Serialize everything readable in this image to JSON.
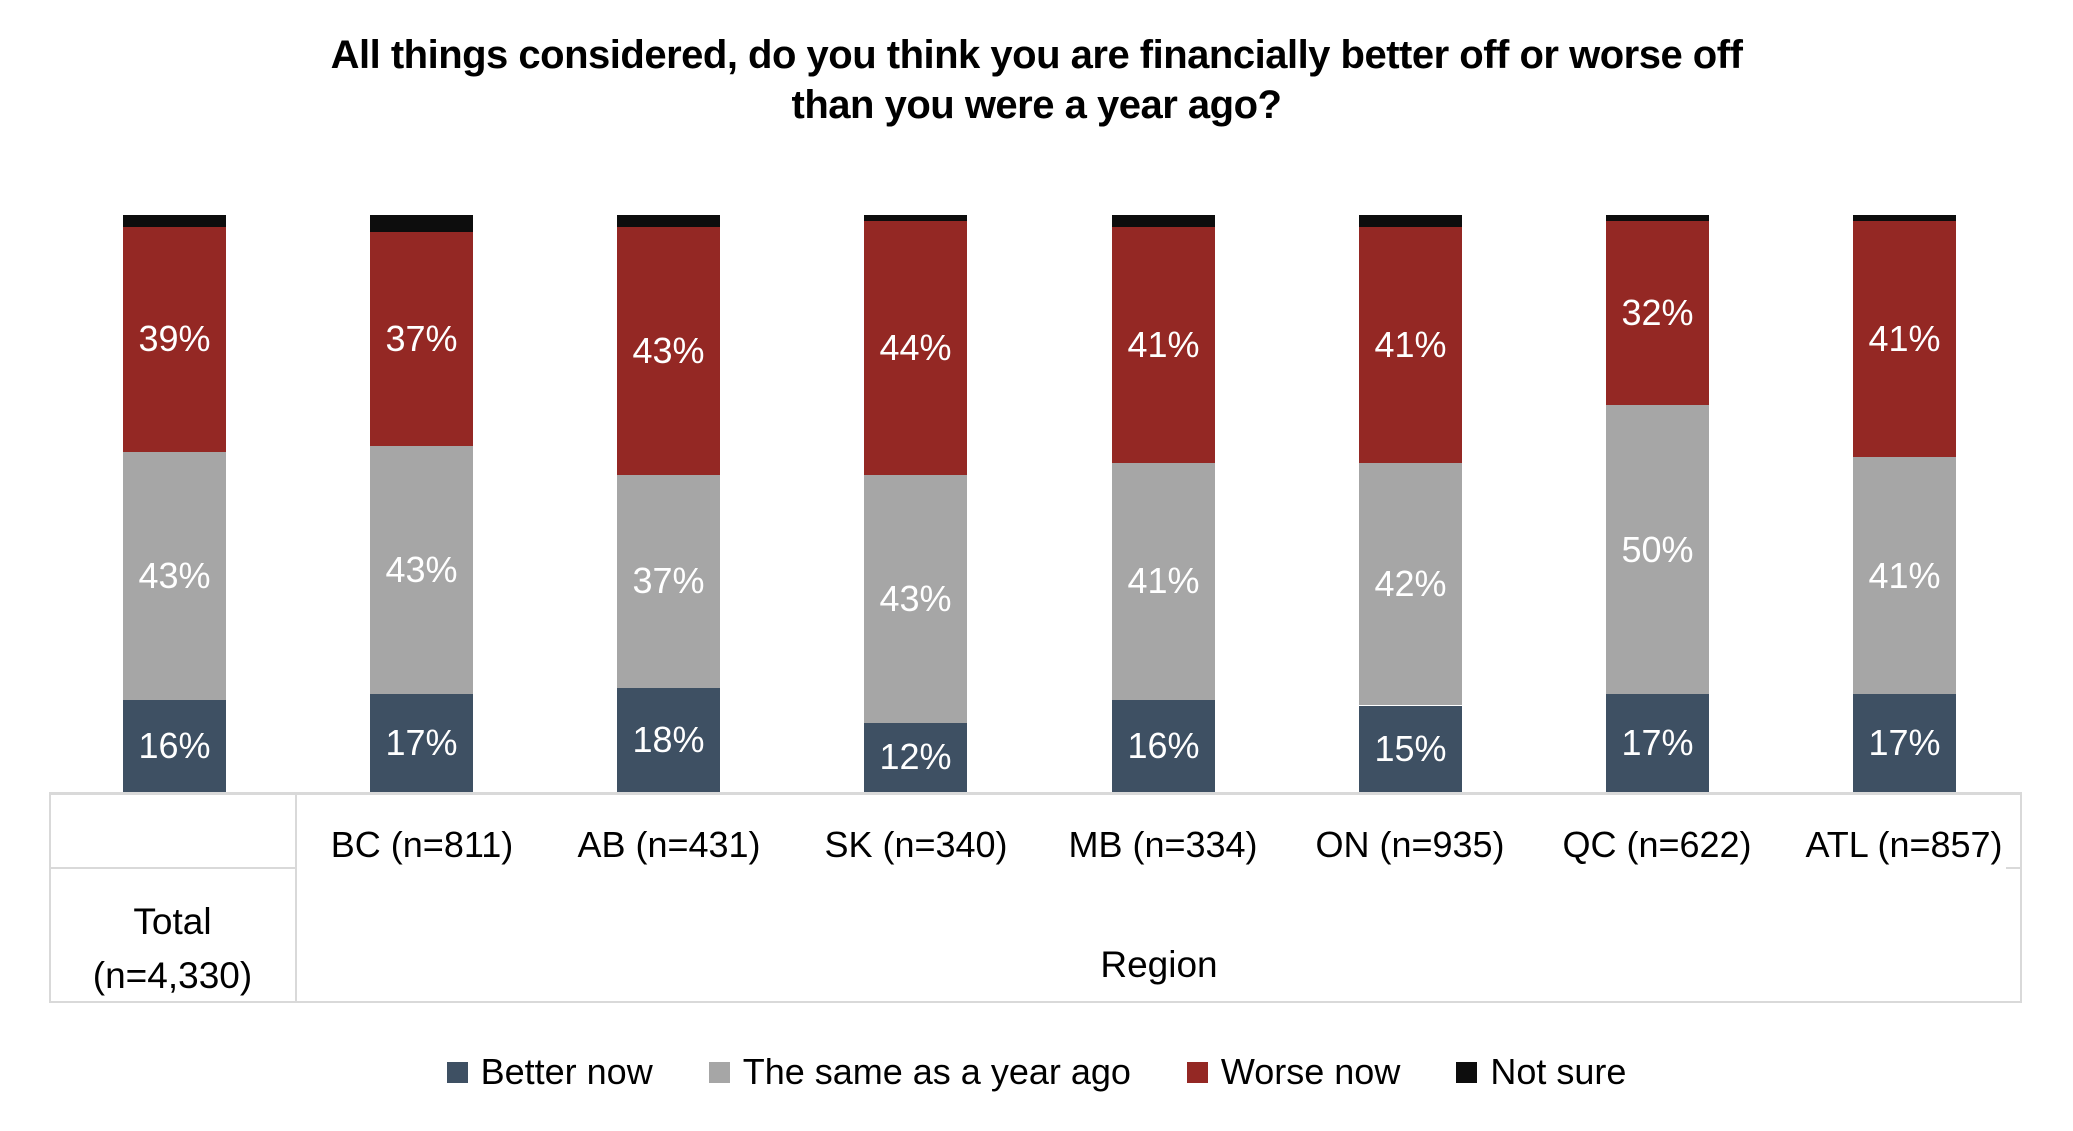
{
  "chart_data": {
    "type": "bar",
    "subtype": "100-percent-stacked-column",
    "title": "All things considered, do you think you are financially better off or worse off than you were a year ago?",
    "title_lines": [
      "All things considered, do you think you are financially better off or worse off",
      "than you were a year ago?"
    ],
    "categories": [
      "Total (n=4,330)",
      "BC (n=811)",
      "AB (n=431)",
      "SK (n=340)",
      "MB (n=334)",
      "ON (n=935)",
      "QC (n=622)",
      "ATL (n=857)"
    ],
    "axis": {
      "category_row_labels": [
        "",
        "BC (n=811)",
        "AB (n=431)",
        "SK (n=340)",
        "MB (n=334)",
        "ON (n=935)",
        "QC (n=622)",
        "ATL (n=857)"
      ],
      "total_cell_lines": [
        "Total",
        "(n=4,330)"
      ],
      "group_label": "Region"
    },
    "series": [
      {
        "name": "Better now",
        "color": "#3E5063",
        "values": [
          16,
          17,
          18,
          12,
          16,
          15,
          17,
          17
        ],
        "data_labels": true
      },
      {
        "name": "The same as a year ago",
        "color": "#A6A6A6",
        "values": [
          43,
          43,
          37,
          43,
          41,
          42,
          50,
          41
        ],
        "data_labels": true
      },
      {
        "name": "Worse now",
        "color": "#942824",
        "values": [
          39,
          37,
          43,
          44,
          41,
          41,
          32,
          41
        ],
        "data_labels": true
      },
      {
        "name": "Not sure",
        "color": "#0D0D0D",
        "values": [
          2,
          3,
          2,
          1,
          2,
          2,
          1,
          1
        ],
        "data_labels": false
      }
    ],
    "value_format": "percent",
    "ylim": [
      0,
      100
    ],
    "gridlines": false,
    "legend_position": "bottom"
  },
  "colors": {
    "background": "#FFFFFF",
    "axis_border": "#D9D9D9",
    "bar_label_text": "#FFFFFF",
    "text": "#000000"
  }
}
